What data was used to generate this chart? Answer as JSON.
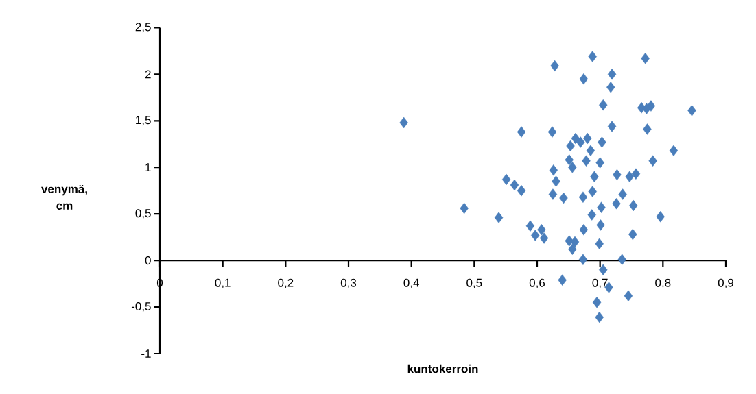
{
  "chart_data": {
    "type": "scatter",
    "xlabel": "kuntokerroin",
    "ylabel": "venymä, cm",
    "x": [
      0.628,
      0.388,
      0.575,
      0.624,
      0.551,
      0.564,
      0.575,
      0.626,
      0.63,
      0.625,
      0.642,
      0.484,
      0.688,
      0.772,
      0.674,
      0.719,
      0.717,
      0.705,
      0.766,
      0.781,
      0.774,
      0.846,
      0.719,
      0.775,
      0.661,
      0.68,
      0.669,
      0.653,
      0.703,
      0.685,
      0.817,
      0.651,
      0.678,
      0.7,
      0.784,
      0.656,
      0.691,
      0.727,
      0.747,
      0.757,
      0.673,
      0.688,
      0.736,
      0.726,
      0.753,
      0.702,
      0.687,
      0.796,
      0.701,
      0.674,
      0.752,
      0.651,
      0.66,
      0.656,
      0.699,
      0.673,
      0.735,
      0.705,
      0.64,
      0.714,
      0.695,
      0.745,
      0.699,
      0.539,
      0.589,
      0.607,
      0.597,
      0.611
    ],
    "values": [
      2.09,
      1.48,
      1.38,
      1.38,
      0.87,
      0.81,
      0.75,
      0.97,
      0.85,
      0.71,
      0.67,
      0.56,
      2.19,
      2.17,
      1.95,
      2.0,
      1.86,
      1.67,
      1.64,
      1.66,
      1.63,
      1.61,
      1.44,
      1.41,
      1.31,
      1.31,
      1.27,
      1.23,
      1.27,
      1.18,
      1.18,
      1.08,
      1.07,
      1.05,
      1.07,
      1.0,
      0.9,
      0.92,
      0.9,
      0.93,
      0.68,
      0.74,
      0.71,
      0.61,
      0.59,
      0.57,
      0.49,
      0.47,
      0.38,
      0.33,
      0.28,
      0.21,
      0.2,
      0.12,
      0.18,
      0.01,
      0.01,
      -0.1,
      -0.21,
      -0.29,
      -0.45,
      -0.38,
      -0.61,
      0.46,
      0.37,
      0.33,
      0.27,
      0.24
    ],
    "color": "#4a7ebb",
    "marker": "diamond",
    "xlim": [
      0,
      0.9
    ],
    "xticks": [
      0,
      {
        "value": 0.1,
        "label": "0,1"
      },
      {
        "value": 0.2,
        "label": "0,2"
      },
      {
        "value": 0.3,
        "label": "0,3"
      },
      {
        "value": 0.4,
        "label": "0,4"
      },
      {
        "value": 0.5,
        "label": "0,5"
      },
      {
        "value": 0.6,
        "label": "0,6"
      },
      {
        "value": 0.7,
        "label": "0,7"
      },
      {
        "value": 0.8,
        "label": "0,8"
      },
      {
        "value": 0.9,
        "label": "0,9"
      }
    ],
    "ylim": [
      -1,
      2.5
    ],
    "yticks": [
      -1,
      {
        "value": -0.5,
        "label": "-0,5"
      },
      0,
      {
        "value": 0.5,
        "label": "0,5"
      },
      1,
      {
        "value": 1.5,
        "label": "1,5"
      },
      2,
      {
        "value": 2.5,
        "label": "2,5"
      }
    ],
    "grid": false
  }
}
